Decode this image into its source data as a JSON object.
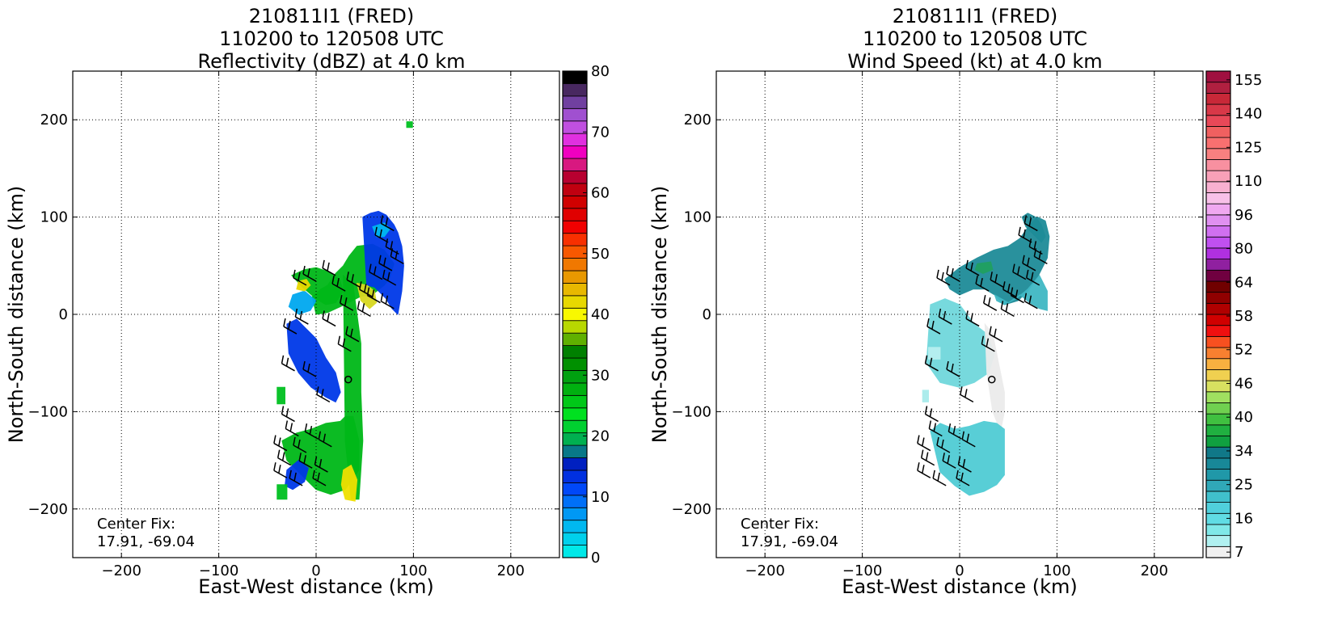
{
  "chart_data": [
    {
      "type": "heatmap",
      "title_line1": "210811I1 (FRED)",
      "title_line2": "110200 to 120508 UTC",
      "title_line3": "Reflectivity (dBZ) at 4.0 km",
      "xlabel": "East-West distance (km)",
      "ylabel": "North-South distance (km)",
      "xlim": [
        -250,
        250
      ],
      "ylim": [
        -250,
        250
      ],
      "x_ticks": [
        "−200",
        "−100",
        "0",
        "100",
        "200"
      ],
      "x_tick_values": [
        -200,
        -100,
        0,
        100,
        200
      ],
      "y_ticks": [
        "200",
        "100",
        "0",
        "−100",
        "−200"
      ],
      "y_tick_values": [
        200,
        100,
        0,
        -100,
        -200
      ],
      "grid": true,
      "annotation_line1": "Center Fix:",
      "annotation_line2": "17.91, -69.04",
      "center": [
        33,
        -67
      ],
      "colorbar_ticks": [
        "80",
        "70",
        "60",
        "50",
        "40",
        "30",
        "20",
        "10",
        "0"
      ],
      "colorbar_min": 0,
      "colorbar_max": 80,
      "colorbar_colors": [
        "#00e8e8",
        "#00d0ec",
        "#00b8f0",
        "#0098f4",
        "#0070f8",
        "#0048f8",
        "#0030e0",
        "#0020c0",
        "#087888",
        "#00b050",
        "#00d030",
        "#00e020",
        "#00c818",
        "#00b010",
        "#00a010",
        "#009000",
        "#008000",
        "#60b000",
        "#b8d800",
        "#f8f800",
        "#e8d800",
        "#e8b800",
        "#e89800",
        "#f07800",
        "#f85800",
        "#f83000",
        "#f00000",
        "#e00000",
        "#d00000",
        "#c00010",
        "#b80030",
        "#d81880",
        "#f000c0",
        "#e030e0",
        "#c050e0",
        "#a050d0",
        "#7040a0",
        "#482860",
        "#000000"
      ],
      "regions": [
        {
          "x": [
            0,
            12,
            25,
            45,
            60,
            70,
            75,
            80,
            70,
            58,
            42,
            34,
            28,
            20,
            12,
            5,
            -4,
            0
          ],
          "y": [
            0,
            2,
            8,
            18,
            22,
            30,
            36,
            52,
            66,
            72,
            70,
            60,
            50,
            42,
            30,
            26,
            18,
            0
          ],
          "color": "#00b818"
        },
        {
          "x": [
            28,
            38,
            46,
            46,
            48,
            44,
            36,
            30,
            28
          ],
          "y": [
            40,
            30,
            -30,
            -80,
            -130,
            -190,
            -190,
            -130,
            40
          ],
          "color": "#00b818"
        },
        {
          "x": [
            -25,
            -12,
            0,
            12,
            24,
            28,
            20,
            10,
            0,
            -14,
            -25
          ],
          "y": [
            40,
            46,
            48,
            44,
            36,
            24,
            12,
            10,
            16,
            28,
            40
          ],
          "color": "#00b818"
        },
        {
          "x": [
            -35,
            -20,
            -5,
            10,
            25,
            30,
            38,
            44,
            44,
            30,
            15,
            0,
            -15,
            -30,
            -35
          ],
          "y": [
            -130,
            -122,
            -118,
            -112,
            -110,
            -105,
            -105,
            -130,
            -160,
            -180,
            -185,
            -180,
            -165,
            -150,
            -130
          ],
          "color": "#00b818"
        },
        {
          "x": [
            48,
            56,
            64,
            72,
            80,
            84,
            88,
            90,
            88,
            84,
            78,
            72,
            60,
            52,
            48
          ],
          "y": [
            100,
            104,
            106,
            102,
            92,
            84,
            70,
            50,
            24,
            0,
            6,
            16,
            28,
            30,
            100
          ],
          "color": "#0038e8"
        },
        {
          "x": [
            -30,
            -20,
            -10,
            0,
            10,
            20,
            25,
            20,
            10,
            -5,
            -18,
            -28,
            -30
          ],
          "y": [
            -10,
            -5,
            -15,
            -25,
            -45,
            -60,
            -80,
            -90,
            -85,
            -75,
            -60,
            -40,
            -10
          ],
          "color": "#0038e8"
        },
        {
          "x": [
            -24,
            -12,
            0,
            -6,
            -18,
            -28,
            -24
          ],
          "y": [
            20,
            24,
            14,
            4,
            0,
            8,
            20
          ],
          "color": "#00a8f0"
        },
        {
          "x": [
            -30,
            -18,
            -8,
            -12,
            -24,
            -32,
            -30
          ],
          "y": [
            -160,
            -150,
            -158,
            -172,
            -180,
            -176,
            -160
          ],
          "color": "#0038e8"
        },
        {
          "x": [
            58,
            70,
            76,
            70,
            62,
            58
          ],
          "y": [
            90,
            94,
            88,
            80,
            80,
            90
          ],
          "color": "#00b8f0"
        },
        {
          "x": [
            28,
            36,
            42,
            40,
            30,
            26,
            28
          ],
          "y": [
            -160,
            -155,
            -170,
            -192,
            -190,
            -175,
            -160
          ],
          "color": "#f0e000"
        },
        {
          "x": [
            -18,
            -10,
            -6,
            -12,
            -20,
            -18
          ],
          "y": [
            34,
            36,
            30,
            24,
            26,
            34
          ],
          "color": "#e8d800"
        },
        {
          "x": [
            42,
            52,
            60,
            62,
            55,
            46,
            42
          ],
          "y": [
            32,
            30,
            24,
            12,
            6,
            14,
            32
          ],
          "color": "#d8d820"
        },
        {
          "x": [
            -40,
            -32,
            -32,
            -40,
            -40
          ],
          "y": [
            -75,
            -75,
            -92,
            -92,
            -75
          ],
          "color": "#00c020"
        },
        {
          "x": [
            -40,
            -30,
            -30,
            -40,
            -40
          ],
          "y": [
            -175,
            -175,
            -190,
            -190,
            -175
          ],
          "color": "#00c020"
        },
        {
          "x": [
            93,
            99,
            99,
            93,
            93
          ],
          "y": [
            198,
            198,
            192,
            192,
            198
          ],
          "color": "#00c020"
        }
      ],
      "barbs": [
        [
          80,
          86
        ],
        [
          74,
          74
        ],
        [
          85,
          62
        ],
        [
          90,
          52
        ],
        [
          78,
          45
        ],
        [
          68,
          36
        ],
        [
          82,
          30
        ],
        [
          20,
          40
        ],
        [
          0,
          34
        ],
        [
          -10,
          30
        ],
        [
          45,
          28
        ],
        [
          30,
          24
        ],
        [
          58,
          18
        ],
        [
          66,
          12
        ],
        [
          80,
          6
        ],
        [
          38,
          4
        ],
        [
          56,
          -2
        ],
        [
          -8,
          -10
        ],
        [
          -20,
          -20
        ],
        [
          20,
          -12
        ],
        [
          44,
          -28
        ],
        [
          36,
          -38
        ],
        [
          -22,
          -58
        ],
        [
          0,
          -64
        ],
        [
          14,
          -90
        ],
        [
          -22,
          -110
        ],
        [
          -18,
          -125
        ],
        [
          2,
          -128
        ],
        [
          16,
          -136
        ],
        [
          -30,
          -140
        ],
        [
          -10,
          -142
        ],
        [
          -26,
          -155
        ],
        [
          -4,
          -158
        ],
        [
          12,
          -162
        ],
        [
          -30,
          -168
        ],
        [
          -14,
          -176
        ],
        [
          10,
          -176
        ]
      ]
    },
    {
      "type": "heatmap",
      "title_line1": "210811I1 (FRED)",
      "title_line2": "110200 to 120508 UTC",
      "title_line3": "Wind Speed (kt) at 4.0 km",
      "xlabel": "East-West distance (km)",
      "ylabel": "North-South distance (km)",
      "xlim": [
        -250,
        250
      ],
      "ylim": [
        -250,
        250
      ],
      "x_ticks": [
        "−200",
        "−100",
        "0",
        "100",
        "200"
      ],
      "x_tick_values": [
        -200,
        -100,
        0,
        100,
        200
      ],
      "y_ticks": [
        "200",
        "100",
        "0",
        "−100",
        "−200"
      ],
      "y_tick_values": [
        200,
        100,
        0,
        -100,
        -200
      ],
      "grid": true,
      "annotation_line1": "Center Fix:",
      "annotation_line2": "17.91, -69.04",
      "center": [
        33,
        -67
      ],
      "colorbar_ticks": [
        "155",
        "140",
        "125",
        "110",
        "96",
        "80",
        "64",
        "58",
        "52",
        "46",
        "40",
        "34",
        "25",
        "16",
        "7"
      ],
      "colorbar_colors": [
        "#f0f0f0",
        "#b0f0f0",
        "#80e8e8",
        "#60dce4",
        "#50d0dc",
        "#40c0cc",
        "#30a8b8",
        "#2098a8",
        "#188898",
        "#107888",
        "#10a040",
        "#20b040",
        "#40c040",
        "#70d050",
        "#a0e060",
        "#d8e060",
        "#f0d050",
        "#f8b040",
        "#f88030",
        "#f85020",
        "#f01010",
        "#d00000",
        "#b00000",
        "#900000",
        "#700000",
        "#700040",
        "#9020a0",
        "#b030e0",
        "#c050f0",
        "#d070f0",
        "#e090f0",
        "#f0a8f0",
        "#f8c0e8",
        "#f8b0d0",
        "#f8a0b8",
        "#f890a0",
        "#f88080",
        "#f87070",
        "#f06060",
        "#e84858",
        "#d83848",
        "#c82838",
        "#b02040",
        "#a01040"
      ],
      "regions": [
        {
          "x": [
            -15,
            0,
            18,
            35,
            50,
            62,
            72,
            80,
            88,
            92,
            90,
            80,
            70,
            60,
            46,
            36,
            26,
            14,
            0,
            -10,
            -15
          ],
          "y": [
            36,
            48,
            58,
            66,
            70,
            78,
            92,
            100,
            96,
            80,
            58,
            38,
            24,
            14,
            10,
            20,
            26,
            26,
            20,
            26,
            36
          ],
          "color": "#1e8c98"
        },
        {
          "x": [
            64,
            70,
            78,
            84,
            88,
            84,
            76,
            68,
            64
          ],
          "y": [
            100,
            104,
            100,
            92,
            80,
            74,
            82,
            90,
            100
          ],
          "color": "#1e8c98"
        },
        {
          "x": [
            36,
            50,
            62,
            72,
            82,
            90,
            90,
            82,
            70,
            58,
            46,
            38,
            36
          ],
          "y": [
            20,
            12,
            20,
            12,
            6,
            4,
            24,
            40,
            26,
            16,
            10,
            14,
            20
          ],
          "color": "#40b8c4"
        },
        {
          "x": [
            -30,
            -15,
            0,
            15,
            28,
            36,
            30,
            15,
            0,
            -20,
            -34,
            -30
          ],
          "y": [
            10,
            16,
            10,
            -10,
            -20,
            -40,
            -60,
            -70,
            -75,
            -70,
            -50,
            10
          ],
          "color": "#70d8dc"
        },
        {
          "x": [
            26,
            34,
            42,
            46,
            46,
            42,
            34,
            28,
            26
          ],
          "y": [
            -10,
            -20,
            -60,
            -80,
            -100,
            -120,
            -100,
            -60,
            -10
          ],
          "color": "#ececec"
        },
        {
          "x": [
            -30,
            -20,
            -5,
            10,
            25,
            38,
            46,
            46,
            38,
            25,
            10,
            -5,
            -20,
            -30
          ],
          "y": [
            -120,
            -112,
            -118,
            -115,
            -110,
            -112,
            -118,
            -165,
            -175,
            -182,
            -186,
            -176,
            -162,
            -120
          ],
          "color": "#50ccd4"
        },
        {
          "x": [
            -38,
            -32,
            -32,
            -38,
            -38
          ],
          "y": [
            -78,
            -78,
            -90,
            -90,
            -78
          ],
          "color": "#a8ecec"
        },
        {
          "x": [
            -32,
            -20,
            -20,
            -32,
            -32
          ],
          "y": [
            -34,
            -34,
            -46,
            -46,
            -34
          ],
          "color": "#b8f0f0"
        },
        {
          "x": [
            18,
            32,
            34,
            24,
            16,
            18
          ],
          "y": [
            52,
            54,
            46,
            42,
            46,
            52
          ],
          "color": "#20a060"
        }
      ],
      "barbs": [
        [
          80,
          86
        ],
        [
          74,
          74
        ],
        [
          85,
          62
        ],
        [
          90,
          52
        ],
        [
          78,
          45
        ],
        [
          68,
          36
        ],
        [
          82,
          30
        ],
        [
          20,
          40
        ],
        [
          0,
          34
        ],
        [
          -10,
          30
        ],
        [
          45,
          28
        ],
        [
          30,
          24
        ],
        [
          58,
          18
        ],
        [
          66,
          12
        ],
        [
          80,
          6
        ],
        [
          38,
          4
        ],
        [
          56,
          -2
        ],
        [
          -8,
          -10
        ],
        [
          -20,
          -20
        ],
        [
          20,
          -12
        ],
        [
          44,
          -28
        ],
        [
          36,
          -38
        ],
        [
          -22,
          -58
        ],
        [
          0,
          -64
        ],
        [
          14,
          -90
        ],
        [
          -22,
          -110
        ],
        [
          -18,
          -125
        ],
        [
          2,
          -128
        ],
        [
          16,
          -136
        ],
        [
          -30,
          -140
        ],
        [
          -10,
          -142
        ],
        [
          -26,
          -155
        ],
        [
          -4,
          -158
        ],
        [
          12,
          -162
        ],
        [
          -30,
          -168
        ],
        [
          -14,
          -176
        ],
        [
          10,
          -176
        ]
      ]
    }
  ]
}
